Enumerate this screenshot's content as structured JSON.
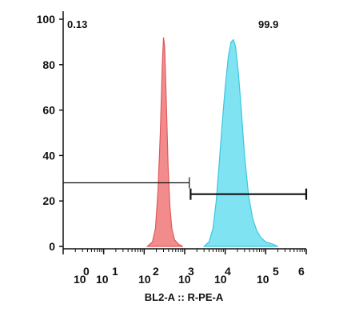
{
  "chart_data": {
    "type": "area",
    "title": "",
    "xlabel": "BL2-A :: R-PE-A",
    "ylabel": "",
    "x_scale": "log",
    "xlim": [
      1,
      1000000
    ],
    "ylim": [
      0,
      100
    ],
    "x_ticks": [
      {
        "base": "10",
        "exp": "0",
        "value": 1
      },
      {
        "base": "10",
        "exp": "1",
        "value": 10
      },
      {
        "base": "10",
        "exp": "2",
        "value": 100
      },
      {
        "base": "10",
        "exp": "3",
        "value": 1000
      },
      {
        "base": "10",
        "exp": "4",
        "value": 10000
      },
      {
        "base": "10",
        "exp": "5",
        "value": 100000
      },
      {
        "base": "",
        "exp": "6",
        "value": 1000000
      }
    ],
    "y_ticks": [
      "0",
      "20",
      "40",
      "60",
      "80",
      "100"
    ],
    "y_tick_values": [
      0,
      20,
      40,
      60,
      80,
      100
    ],
    "grid": false,
    "series": [
      {
        "color": "#f28c8c",
        "stroke": "#e05a5a",
        "points": [
          [
            120,
            0
          ],
          [
            160,
            2
          ],
          [
            190,
            8
          ],
          [
            220,
            25
          ],
          [
            250,
            50
          ],
          [
            280,
            80
          ],
          [
            300,
            92
          ],
          [
            320,
            88
          ],
          [
            350,
            65
          ],
          [
            390,
            35
          ],
          [
            430,
            18
          ],
          [
            480,
            8
          ],
          [
            560,
            3
          ],
          [
            700,
            1
          ],
          [
            900,
            0
          ]
        ]
      },
      {
        "color": "#7fe3f2",
        "stroke": "#3cc6e0",
        "points": [
          [
            3000,
            0
          ],
          [
            4000,
            2
          ],
          [
            5000,
            8
          ],
          [
            6000,
            20
          ],
          [
            7000,
            35
          ],
          [
            8500,
            55
          ],
          [
            10000,
            70
          ],
          [
            12000,
            84
          ],
          [
            14000,
            90
          ],
          [
            16000,
            91
          ],
          [
            18000,
            88
          ],
          [
            21000,
            77
          ],
          [
            25000,
            60
          ],
          [
            30000,
            40
          ],
          [
            38000,
            22
          ],
          [
            48000,
            12
          ],
          [
            60000,
            7
          ],
          [
            75000,
            4
          ],
          [
            100000,
            2
          ],
          [
            150000,
            1
          ],
          [
            200000,
            0
          ]
        ]
      }
    ],
    "gates": [
      {
        "label": "0.13",
        "from": 1,
        "to": 1300,
        "y": 28
      },
      {
        "label": "99.9",
        "from": 1400,
        "to": 1000000,
        "y": 23
      }
    ]
  }
}
